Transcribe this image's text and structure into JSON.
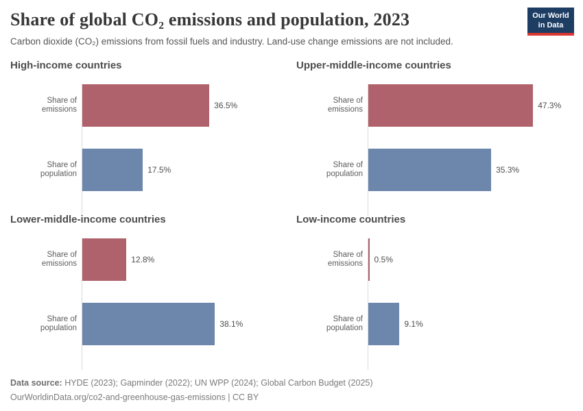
{
  "header": {
    "title": "Share of global CO₂ emissions and population, 2023",
    "subtitle": "Carbon dioxide (CO₂) emissions from fossil fuels and industry. Land-use change emissions are not included.",
    "logo": {
      "line1": "Our World",
      "line2": "in Data",
      "bg_color": "#1d3d63",
      "strip_color": "#d93832"
    }
  },
  "chart_data": [
    {
      "type": "bar",
      "orientation": "horizontal",
      "title": "High-income countries",
      "categories": [
        "Share of emissions",
        "Share of population"
      ],
      "values": [
        36.5,
        17.5
      ],
      "value_labels": [
        "36.5%",
        "17.5%"
      ],
      "unit": "%",
      "xlim": [
        0,
        100
      ],
      "grid": false,
      "colors": [
        "#af626b",
        "#6c86ac"
      ]
    },
    {
      "type": "bar",
      "orientation": "horizontal",
      "title": "Upper-middle-income countries",
      "categories": [
        "Share of emissions",
        "Share of population"
      ],
      "values": [
        47.3,
        35.3
      ],
      "value_labels": [
        "47.3%",
        "35.3%"
      ],
      "unit": "%",
      "xlim": [
        0,
        100
      ],
      "grid": false,
      "colors": [
        "#af626b",
        "#6c86ac"
      ]
    },
    {
      "type": "bar",
      "orientation": "horizontal",
      "title": "Lower-middle-income countries",
      "categories": [
        "Share of emissions",
        "Share of population"
      ],
      "values": [
        12.8,
        38.1
      ],
      "value_labels": [
        "12.8%",
        "38.1%"
      ],
      "unit": "%",
      "xlim": [
        0,
        100
      ],
      "grid": false,
      "colors": [
        "#af626b",
        "#6c86ac"
      ]
    },
    {
      "type": "bar",
      "orientation": "horizontal",
      "title": "Low-income countries",
      "categories": [
        "Share of emissions",
        "Share of population"
      ],
      "values": [
        0.5,
        9.1
      ],
      "value_labels": [
        "0.5%",
        "9.1%"
      ],
      "unit": "%",
      "xlim": [
        0,
        100
      ],
      "grid": false,
      "colors": [
        "#af626b",
        "#6c86ac"
      ]
    }
  ],
  "footer": {
    "datasource_label": "Data source:",
    "datasource_text": "HYDE (2023); Gapminder (2022); UN WPP (2024); Global Carbon Budget (2025)",
    "link_text": "OurWorldinData.org/co2-and-greenhouse-gas-emissions | CC BY"
  }
}
